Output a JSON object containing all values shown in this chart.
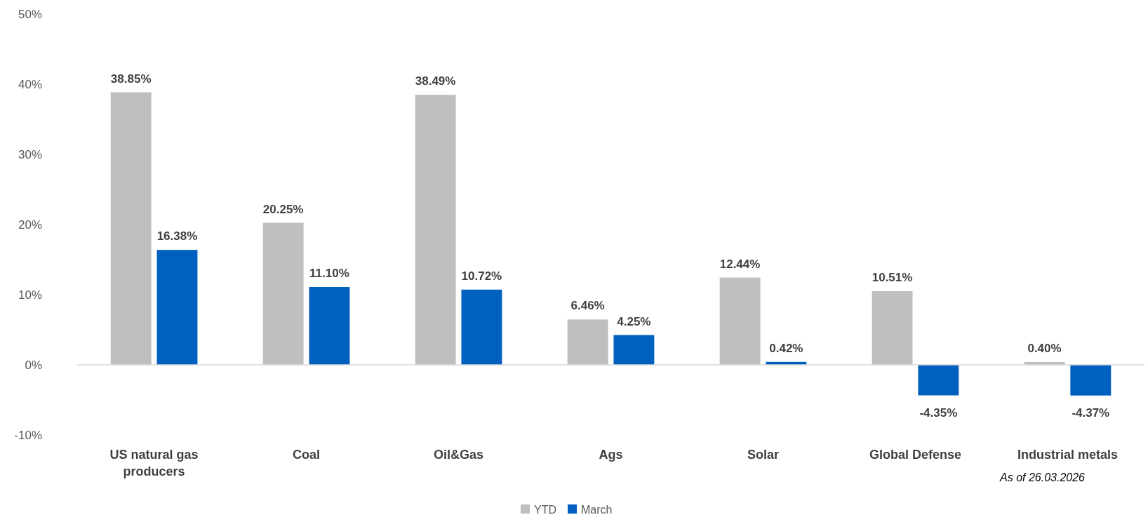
{
  "chart_data": {
    "type": "bar",
    "categories": [
      "US natural gas producers",
      "Coal",
      "Oil&Gas",
      "Ags",
      "Solar",
      "Global Defense",
      "Industrial metals"
    ],
    "series": [
      {
        "name": "YTD",
        "color": "#bfbfbf",
        "values": [
          38.85,
          20.25,
          38.49,
          6.46,
          12.44,
          10.51,
          0.4
        ],
        "value_labels": [
          "38.85%",
          "20.25%",
          "38.49%",
          "6.46%",
          "12.44%",
          "10.51%",
          "0.40%"
        ]
      },
      {
        "name": "March",
        "color": "#0060c0",
        "values": [
          16.38,
          11.1,
          10.72,
          4.25,
          0.42,
          -4.35,
          -4.37
        ],
        "value_labels": [
          "16.38%",
          "11.10%",
          "10.72%",
          "4.25%",
          "0.42%",
          "-4.35%",
          "-4.37%"
        ]
      }
    ],
    "ylim": [
      -10,
      50
    ],
    "yticks": [
      {
        "value": -10,
        "label": "-10%"
      },
      {
        "value": 0,
        "label": "0%"
      },
      {
        "value": 10,
        "label": "10%"
      },
      {
        "value": 20,
        "label": "20%"
      },
      {
        "value": 30,
        "label": "30%"
      },
      {
        "value": 40,
        "label": "40%"
      },
      {
        "value": 50,
        "label": "50%"
      }
    ],
    "legend": "bottom",
    "annotations": [
      "As of 26.03.2026"
    ]
  }
}
